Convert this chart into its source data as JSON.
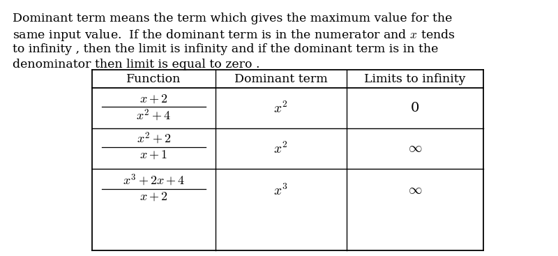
{
  "paragraph_lines": [
    "Dominant term means the term which gives the maximum value for the",
    "same input value.  If the dominant term is in the numerator and $x$ tends",
    "to infinity , then the limit is infinity and if the dominant term is in the",
    "denominator then limit is equal to zero ."
  ],
  "col_headers": [
    "Function",
    "Dominant term",
    "Limits to infinity"
  ],
  "rows": [
    {
      "func_num": "$x+2$",
      "func_den": "$x^2+4$",
      "dom": "$x^2$",
      "lim": "0"
    },
    {
      "func_num": "$x^2+2$",
      "func_den": "$x+1$",
      "dom": "$x^2$",
      "lim": "$\\infty$"
    },
    {
      "func_num": "$x^3+2x+4$",
      "func_den": "$x+2$",
      "dom": "$x^3$",
      "lim": "$\\infty$"
    }
  ],
  "bg_color": "#ffffff",
  "text_color": "#000000",
  "font_size": 12.5,
  "math_font_size": 13.0
}
